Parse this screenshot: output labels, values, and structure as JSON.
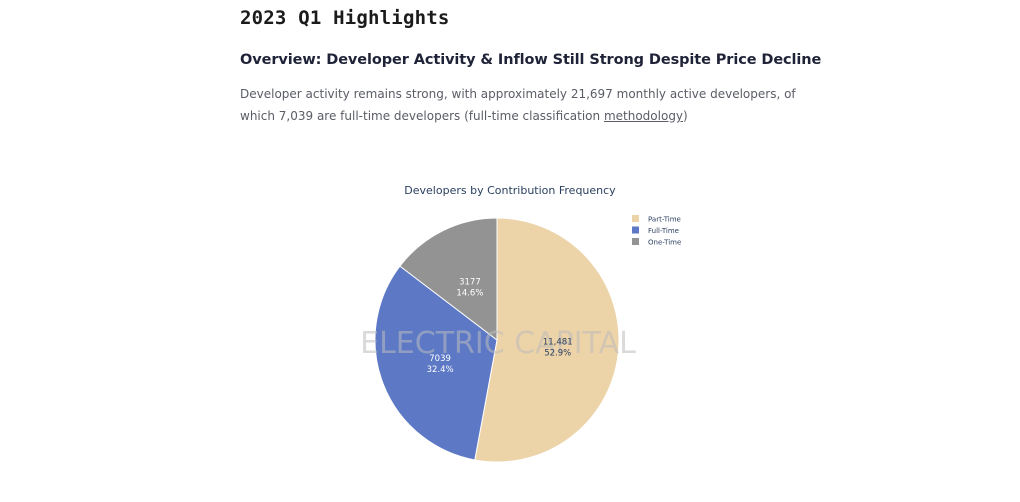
{
  "page": {
    "title": "2023 Q1 Highlights",
    "section_heading": "Overview: Developer Activity & Inflow Still Strong Despite Price Decline",
    "intro_text_1": "Developer activity remains strong, with approximately 21,697 monthly active developers, of which 7,039 are full-time developers (full-time classification ",
    "intro_link": "methodology",
    "intro_text_2": ")"
  },
  "chart_data": {
    "type": "pie",
    "title": "Developers by Contribution Frequency",
    "watermark": "ELECTRIC CAPITAL",
    "legend_position": "top-right",
    "slices": [
      {
        "label": "Part-Time",
        "value": 11481,
        "value_text": "11,481",
        "percent_text": "52.9%",
        "color": "#ecd3a8",
        "text_color": "#2a3f5f"
      },
      {
        "label": "Full-Time",
        "value": 7039,
        "value_text": "7039",
        "percent_text": "32.4%",
        "color": "#5d79c6",
        "text_color": "#ffffff"
      },
      {
        "label": "One-Time",
        "value": 3177,
        "value_text": "3177",
        "percent_text": "14.6%",
        "color": "#939393",
        "text_color": "#ffffff"
      }
    ]
  }
}
